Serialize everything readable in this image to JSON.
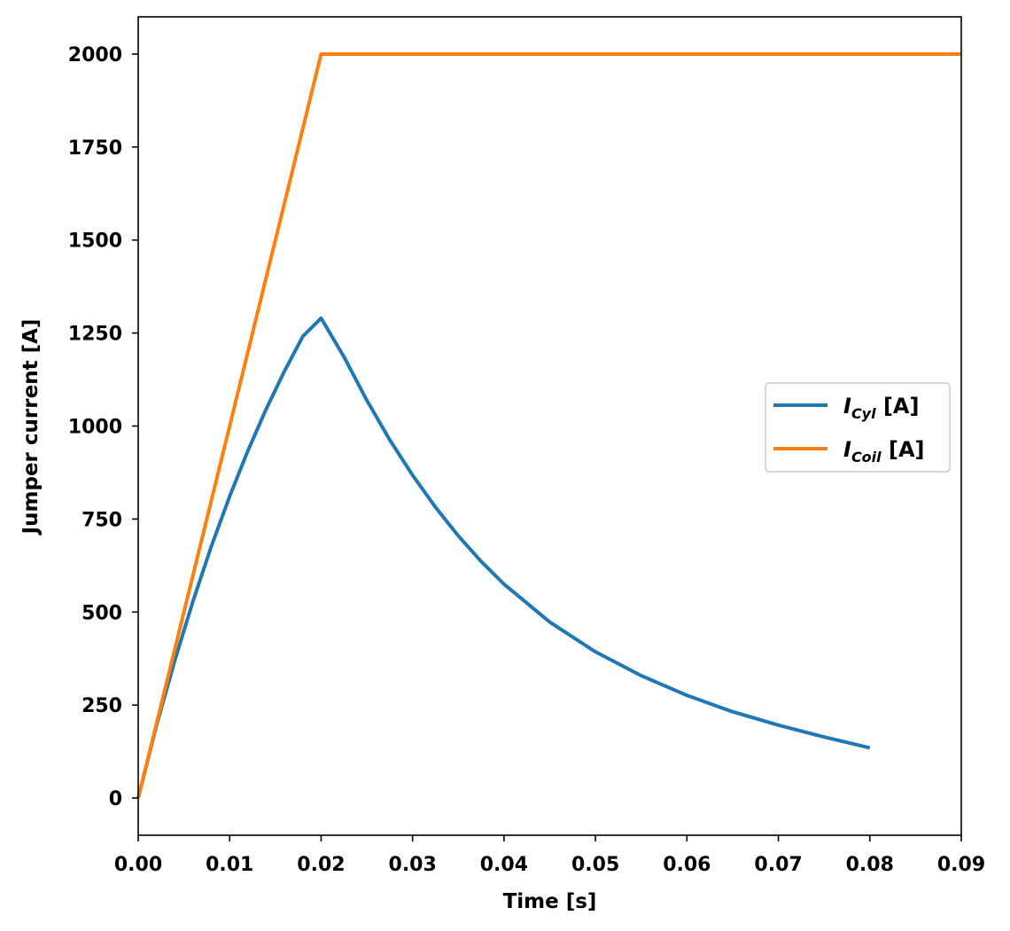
{
  "chart_data": {
    "type": "line",
    "title": "",
    "xlabel": "Time [s]",
    "ylabel": "Jumper current [A]",
    "xlim": [
      0.0,
      0.09
    ],
    "ylim": [
      -100,
      2100
    ],
    "xticks": [
      0.0,
      0.01,
      0.02,
      0.03,
      0.04,
      0.05,
      0.06,
      0.07,
      0.08,
      0.09
    ],
    "xtick_labels": [
      "0.00",
      "0.01",
      "0.02",
      "0.03",
      "0.04",
      "0.05",
      "0.06",
      "0.07",
      "0.08",
      "0.09"
    ],
    "yticks": [
      0,
      250,
      500,
      750,
      1000,
      1250,
      1500,
      1750,
      2000
    ],
    "ytick_labels": [
      "0",
      "250",
      "500",
      "750",
      "1000",
      "1250",
      "1500",
      "1750",
      "2000"
    ],
    "grid": false,
    "legend_position": "center-right",
    "series": [
      {
        "name": "I_Cyl [A]",
        "legend_main": "I",
        "legend_sub": "Cyl",
        "legend_suffix": " [A]",
        "color": "#1f77b4",
        "x": [
          0.0,
          0.002,
          0.004,
          0.006,
          0.008,
          0.01,
          0.012,
          0.014,
          0.016,
          0.018,
          0.02,
          0.0225,
          0.025,
          0.0275,
          0.03,
          0.0325,
          0.035,
          0.0375,
          0.04,
          0.045,
          0.05,
          0.055,
          0.06,
          0.065,
          0.07,
          0.075,
          0.08
        ],
        "y": [
          0,
          195,
          370,
          530,
          677,
          811,
          934,
          1046,
          1148,
          1241,
          1290,
          1186,
          1069,
          963,
          868,
          782,
          705,
          636,
          575,
          473,
          393,
          329,
          276,
          232,
          196,
          164,
          135
        ]
      },
      {
        "name": "I_Coil [A]",
        "legend_main": "I",
        "legend_sub": "Coil",
        "legend_suffix": " [A]",
        "color": "#ff7f0e",
        "x": [
          0.0,
          0.02,
          0.09
        ],
        "y": [
          0,
          2000,
          2000
        ]
      }
    ]
  }
}
